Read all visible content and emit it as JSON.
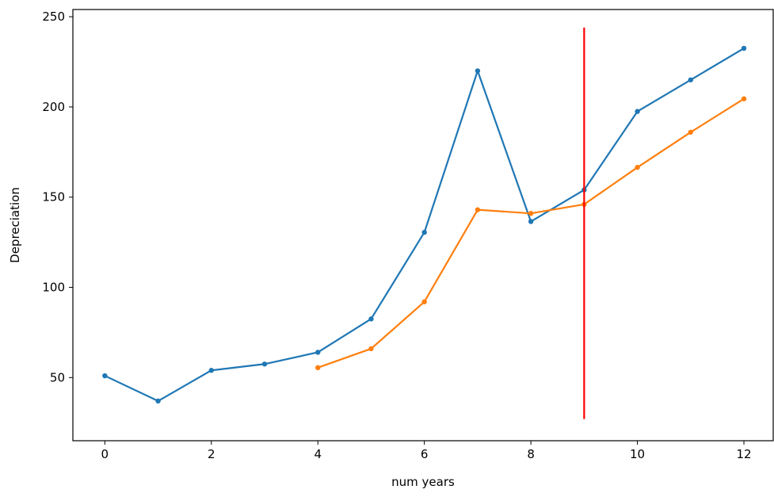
{
  "chart_data": {
    "type": "line",
    "title": "",
    "xlabel": "num years",
    "ylabel": "Depreciation",
    "xlim": [
      -0.6,
      12.55
    ],
    "ylim": [
      15,
      254
    ],
    "xticks": [
      0,
      2,
      4,
      6,
      8,
      10,
      12
    ],
    "yticks": [
      50,
      100,
      150,
      200,
      250
    ],
    "grid": false,
    "series": [
      {
        "color": "#1f77b4",
        "x": [
          0,
          1,
          2,
          3,
          4,
          5,
          6,
          7,
          8,
          9,
          10,
          11,
          12
        ],
        "y": [
          51,
          37,
          54,
          57.5,
          64,
          82.5,
          130.5,
          220,
          136.5,
          154,
          197.5,
          215,
          232.5
        ]
      },
      {
        "color": "#ff7f0e",
        "x": [
          4,
          5,
          6,
          7,
          8,
          9,
          10,
          11,
          12
        ],
        "y": [
          55.5,
          66,
          92,
          143,
          141,
          146,
          166.5,
          186,
          204.5
        ]
      }
    ],
    "vline": {
      "x": 9,
      "y_range": [
        27,
        244
      ],
      "color": "#ff0000"
    }
  }
}
